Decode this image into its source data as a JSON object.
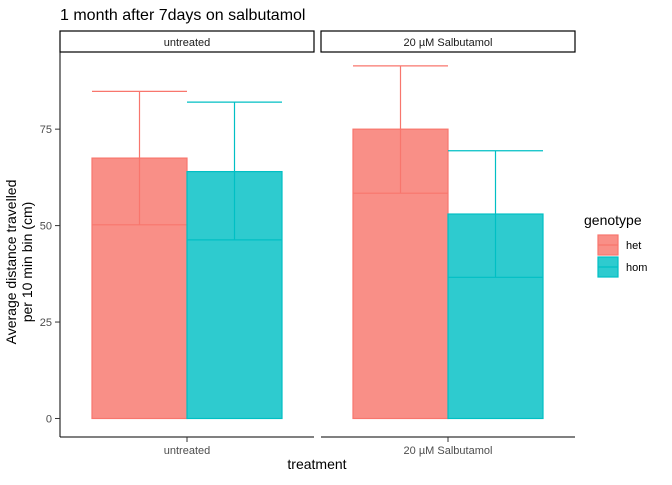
{
  "chart_data": {
    "type": "bar",
    "title": "1 month after 7days on salbutamol",
    "xlabel": "treatment",
    "ylabel_lines": [
      "Average distance travelled",
      "per 10 min bin (cm)"
    ],
    "ylim": [
      -4.8,
      95
    ],
    "yticks": [
      0,
      25,
      50,
      75
    ],
    "categories": [
      "untreated",
      "20 µM Salbutamol"
    ],
    "legend": {
      "title": "genotype",
      "position": "right",
      "items": [
        {
          "label": "het",
          "fill": "#F8766D",
          "line": "#F8766D"
        },
        {
          "label": "hom",
          "fill": "#00BFC4",
          "line": "#00BFC4"
        }
      ]
    },
    "series": [
      {
        "name": "het",
        "fill": "#F8766D",
        "stroke": "#F8766D",
        "values": [
          67.5,
          75.0
        ],
        "means": [
          50.2,
          58.4
        ],
        "upper": [
          84.8,
          91.4
        ]
      },
      {
        "name": "hom",
        "fill": "#00BFC4",
        "stroke": "#00BFC4",
        "values": [
          64.0,
          53.0
        ],
        "means": [
          46.3,
          36.6
        ],
        "upper": [
          82.0,
          69.4
        ]
      }
    ],
    "grid": false
  }
}
